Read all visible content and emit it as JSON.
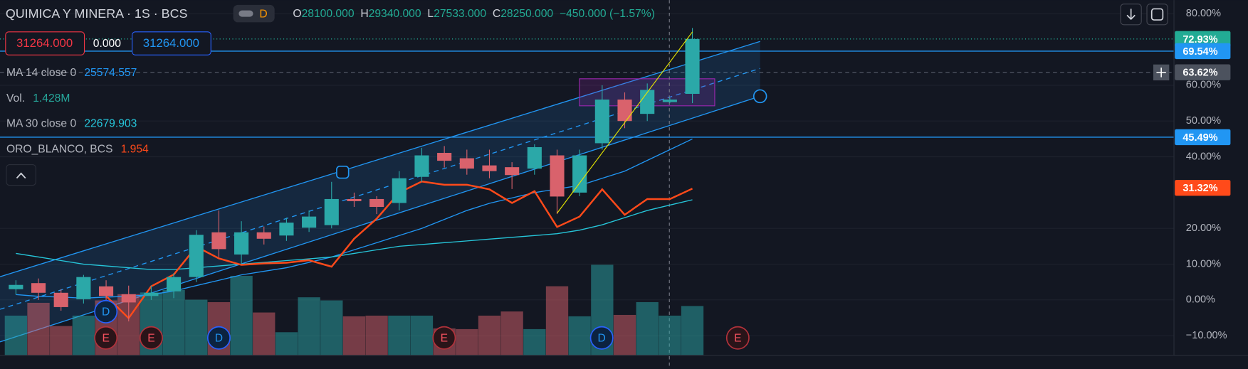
{
  "chart_data": {
    "type": "candlestick",
    "title": "QUIMICA Y MINERA · 1S · BCS",
    "interval_badge": "D",
    "quote": [
      {
        "key": "O",
        "value": "28100.000"
      },
      {
        "key": "H",
        "value": "29340.000"
      },
      {
        "key": "L",
        "value": "27533.000"
      },
      {
        "key": "C",
        "value": "28250.000"
      }
    ],
    "change": "−450.000 (−1.57%)",
    "order_panel": {
      "sell": "31264.000",
      "spread": "0.000",
      "buy": "31264.000"
    },
    "open": [
      3.0,
      4.7,
      2.0,
      0.2,
      3.8,
      1.6,
      1.1,
      2.4,
      6.4,
      18.9,
      12.7,
      18.9,
      18.0,
      20.2,
      20.9,
      28.2,
      28.2,
      27.1,
      34.4,
      41.1,
      39.6,
      37.6,
      37.1,
      36.7,
      40.4,
      30.0,
      43.8,
      56.0,
      52.0,
      55.3,
      57.6
    ],
    "high": [
      5.5,
      6.0,
      3.0,
      7.0,
      5.5,
      4.0,
      4.0,
      7.5,
      19.5,
      25.0,
      22.0,
      20.5,
      23.0,
      25.0,
      33.0,
      30.0,
      29.0,
      36.0,
      42.5,
      43.0,
      42.0,
      42.0,
      38.5,
      43.5,
      42.0,
      42.0,
      60.0,
      58.0,
      60.5,
      56.5,
      76.0
    ],
    "low": [
      1.5,
      0.0,
      -3.0,
      -1.0,
      -1.0,
      -6.0,
      0.0,
      0.5,
      5.0,
      12.0,
      10.0,
      15.5,
      16.5,
      19.0,
      20.0,
      26.0,
      24.0,
      25.0,
      33.0,
      37.0,
      35.0,
      34.0,
      31.0,
      35.0,
      24.0,
      29.0,
      42.0,
      48.0,
      50.0,
      55.0,
      55.0
    ],
    "close": [
      4.2,
      2.0,
      -2.0,
      6.4,
      1.1,
      -0.7,
      2.0,
      6.4,
      18.2,
      14.2,
      18.9,
      17.1,
      21.6,
      23.3,
      28.2,
      27.6,
      26.0,
      34.0,
      40.4,
      38.9,
      36.7,
      36.0,
      34.9,
      42.7,
      28.9,
      40.4,
      56.0,
      50.0,
      58.7,
      56.0,
      72.93
    ],
    "up_color": "#2ba8a8",
    "down_color": "#d9626c",
    "indicators": [
      {
        "type": "line",
        "name": "MA 14 close 0",
        "last": "25574.557",
        "color": "#2196f3",
        "values": [
          1.5,
          1.0,
          0.8,
          0.5,
          0.8,
          1.0,
          1.5,
          2.5,
          4,
          5.5,
          7,
          8,
          9,
          10.5,
          12,
          14,
          16,
          18,
          20,
          22.5,
          25,
          27,
          28.5,
          30,
          31,
          32,
          34,
          36,
          39,
          42,
          45
        ]
      },
      {
        "type": "volume",
        "name": "Vol.",
        "last": "1.428M",
        "color": "#26a69a",
        "values": [
          1.15,
          1.52,
          0.85,
          1.15,
          1.59,
          1.77,
          1.82,
          1.89,
          1.61,
          1.54,
          2.3,
          1.24,
          0.67,
          1.68,
          1.59,
          1.13,
          1.15,
          1.15,
          1.15,
          0.78,
          0.76,
          1.15,
          1.27,
          0.76,
          2.0,
          1.13,
          2.62,
          1.17,
          1.54,
          1.15,
          1.428
        ]
      },
      {
        "type": "line",
        "name": "MA 30 close 0",
        "last": "22679.903",
        "color": "#26c6da",
        "values": [
          13,
          12,
          11,
          10,
          9.5,
          9,
          8.5,
          8.5,
          9,
          9.5,
          10,
          10.5,
          11,
          11.5,
          12,
          13,
          14,
          15,
          15.5,
          16,
          16.5,
          17,
          17.5,
          18,
          18.5,
          19.5,
          21,
          23,
          25,
          26.5,
          28
        ]
      },
      {
        "type": "line",
        "name": "ORO_BLANCO, BCS",
        "last": "1.954",
        "color": "#ff4a1a",
        "values": [
          null,
          null,
          null,
          null,
          1.1,
          -5.1,
          3.8,
          7.1,
          14.9,
          11.6,
          9.8,
          10.2,
          10.4,
          11.1,
          9.3,
          17.1,
          22.7,
          30,
          33.1,
          32.2,
          32.2,
          30.9,
          27.1,
          30.4,
          20.4,
          23.3,
          30.9,
          23.8,
          28.2,
          28.2,
          31.1
        ]
      }
    ],
    "ylim": [
      -15.5,
      83.8
    ],
    "yticks": [
      {
        "value": 80,
        "label": "80.00%"
      },
      {
        "value": 60,
        "label": "60.00%"
      },
      {
        "value": 50,
        "label": "50.00%"
      },
      {
        "value": 40,
        "label": "40.00%"
      },
      {
        "value": 20,
        "label": "20.00%"
      },
      {
        "value": 10,
        "label": "10.00%"
      },
      {
        "value": 0,
        "label": "0.00%"
      },
      {
        "value": -10,
        "label": "−10.00%"
      }
    ],
    "grid": true,
    "price_markers": [
      {
        "value": 72.93,
        "label": "72.93%",
        "color": "#22ab94",
        "line": "dotted"
      },
      {
        "value": 69.54,
        "label": "69.54%",
        "color": "#2196f3",
        "line": "solid"
      },
      {
        "value": 63.62,
        "label": "63.62%",
        "color": "#4c525e",
        "line": "dashed"
      },
      {
        "value": 45.49,
        "label": "45.49%",
        "color": "#2196f3",
        "line": "solid"
      },
      {
        "value": 31.32,
        "label": "31.32%",
        "color": "#ff4a1a",
        "line": "none"
      }
    ],
    "events": [
      "D",
      "E",
      "E",
      "D",
      "E",
      "D",
      "E"
    ]
  }
}
